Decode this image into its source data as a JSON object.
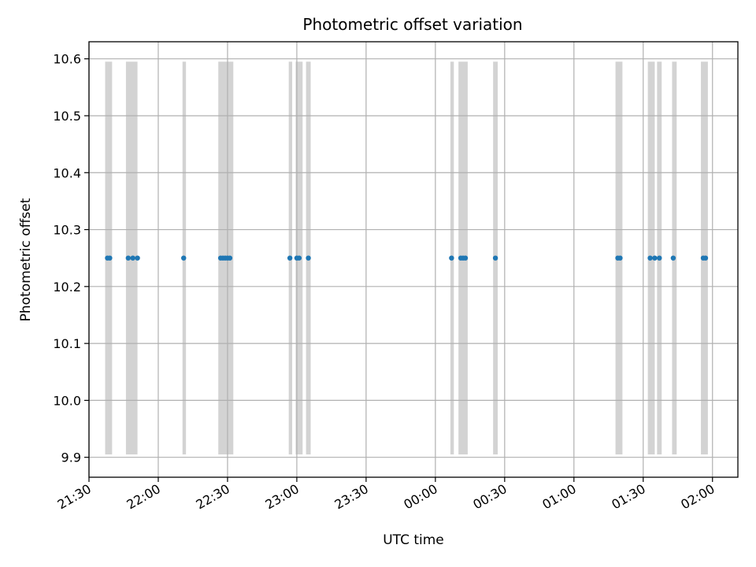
{
  "chart_data": {
    "type": "scatter",
    "title": "Photometric offset variation",
    "xlabel": "UTC time",
    "ylabel": "Photometric offset",
    "x_format": "HH:MM",
    "x_domain": [
      "2023-01-01T21:30:00Z",
      "2023-01-02T02:11:00Z"
    ],
    "x_ticks": [
      "2023-01-01T21:30:00Z",
      "2023-01-01T22:00:00Z",
      "2023-01-01T22:30:00Z",
      "2023-01-01T23:00:00Z",
      "2023-01-01T23:30:00Z",
      "2023-01-02T00:00:00Z",
      "2023-01-02T00:30:00Z",
      "2023-01-02T01:00:00Z",
      "2023-01-02T01:30:00Z",
      "2023-01-02T02:00:00Z"
    ],
    "x_tick_labels": [
      "21:30",
      "22:00",
      "22:30",
      "23:00",
      "23:30",
      "00:00",
      "00:30",
      "01:00",
      "01:30",
      "02:00"
    ],
    "ylim": [
      9.865,
      10.63
    ],
    "y_ticks": [
      9.9,
      10.0,
      10.1,
      10.2,
      10.3,
      10.4,
      10.5,
      10.6
    ],
    "y_tick_labels": [
      "9.9",
      "10.0",
      "10.1",
      "10.2",
      "10.3",
      "10.4",
      "10.5",
      "10.6"
    ],
    "grid": true,
    "series": [
      {
        "color": "#1f77b4",
        "x": [
          "2023-01-01T21:38:00Z",
          "2023-01-01T21:39:00Z",
          "2023-01-01T21:47:00Z",
          "2023-01-01T21:49:00Z",
          "2023-01-01T21:51:00Z",
          "2023-01-01T22:11:00Z",
          "2023-01-01T22:27:00Z",
          "2023-01-01T22:28:00Z",
          "2023-01-01T22:29:00Z",
          "2023-01-01T22:30:00Z",
          "2023-01-01T22:31:00Z",
          "2023-01-01T22:57:00Z",
          "2023-01-01T23:00:00Z",
          "2023-01-01T23:01:00Z",
          "2023-01-01T23:05:00Z",
          "2023-01-02T00:07:00Z",
          "2023-01-02T00:11:00Z",
          "2023-01-02T00:12:00Z",
          "2023-01-02T00:13:00Z",
          "2023-01-02T00:26:00Z",
          "2023-01-02T01:19:00Z",
          "2023-01-02T01:20:00Z",
          "2023-01-02T01:33:00Z",
          "2023-01-02T01:35:00Z",
          "2023-01-02T01:37:00Z",
          "2023-01-02T01:43:00Z",
          "2023-01-02T01:56:00Z",
          "2023-01-02T01:57:00Z"
        ],
        "y": [
          10.25,
          10.25,
          10.25,
          10.25,
          10.25,
          10.25,
          10.25,
          10.25,
          10.25,
          10.25,
          10.25,
          10.25,
          10.25,
          10.25,
          10.25,
          10.25,
          10.25,
          10.25,
          10.25,
          10.25,
          10.25,
          10.25,
          10.25,
          10.25,
          10.25,
          10.25,
          10.25,
          10.25
        ]
      }
    ],
    "spans": {
      "color": "#d3d3d3",
      "y_range": [
        9.905,
        10.595
      ],
      "intervals": [
        [
          "2023-01-01T21:37:00Z",
          "2023-01-01T21:40:00Z"
        ],
        [
          "2023-01-01T21:46:00Z",
          "2023-01-01T21:51:00Z"
        ],
        [
          "2023-01-01T22:10:30Z",
          "2023-01-01T22:12:00Z"
        ],
        [
          "2023-01-01T22:26:00Z",
          "2023-01-01T22:32:30Z"
        ],
        [
          "2023-01-01T22:56:30Z",
          "2023-01-01T22:58:00Z"
        ],
        [
          "2023-01-01T22:59:30Z",
          "2023-01-01T23:02:30Z"
        ],
        [
          "2023-01-01T23:04:00Z",
          "2023-01-01T23:06:00Z"
        ],
        [
          "2023-01-02T00:06:30Z",
          "2023-01-02T00:08:00Z"
        ],
        [
          "2023-01-02T00:10:00Z",
          "2023-01-02T00:14:00Z"
        ],
        [
          "2023-01-02T00:25:00Z",
          "2023-01-02T00:27:00Z"
        ],
        [
          "2023-01-02T01:18:00Z",
          "2023-01-02T01:21:00Z"
        ],
        [
          "2023-01-02T01:32:00Z",
          "2023-01-02T01:35:00Z"
        ],
        [
          "2023-01-02T01:36:00Z",
          "2023-01-02T01:38:00Z"
        ],
        [
          "2023-01-02T01:42:30Z",
          "2023-01-02T01:44:30Z"
        ],
        [
          "2023-01-02T01:55:00Z",
          "2023-01-02T01:58:00Z"
        ]
      ]
    }
  }
}
